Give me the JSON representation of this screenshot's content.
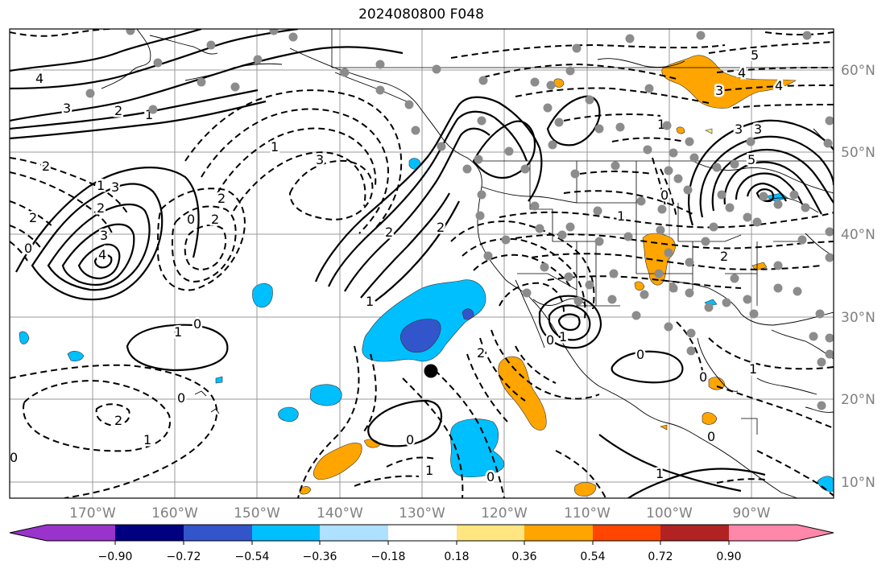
{
  "title": "2024080800 F048",
  "map": {
    "projection": "lat-lon",
    "lon_range": [
      -180,
      -80
    ],
    "lat_range": [
      7,
      64
    ],
    "lon_ticks": [
      "170°W",
      "160°W",
      "150°W",
      "140°W",
      "130°W",
      "120°W",
      "110°W",
      "100°W",
      "90°W"
    ],
    "lat_ticks": [
      "10°N",
      "20°N",
      "30°N",
      "40°N",
      "50°N",
      "60°N"
    ],
    "contour_labels": [
      "4",
      "3",
      "2",
      "1",
      "2",
      "3",
      "4",
      "3",
      "2",
      "1",
      "0",
      "1",
      "2",
      "3",
      "2",
      "2",
      "0",
      "1",
      "1",
      "0",
      "2",
      "2",
      "0",
      "1",
      "0",
      "2",
      "3",
      "4",
      "5",
      "5",
      "4",
      "3",
      "3",
      "1",
      "0",
      "1",
      "2",
      "1",
      "0",
      "1",
      "0",
      "0",
      "1",
      "0",
      "2",
      "1",
      "0",
      "0"
    ],
    "marker": {
      "type": "station-dot",
      "lon": -128.5,
      "lat": 23.3
    },
    "observation_dots": "scattered grey station markers over land"
  },
  "colors": {
    "purple": "#9933cc",
    "navy": "#000080",
    "royal_blue": "#3355cc",
    "deep_sky": "#00bfff",
    "light_blue": "#aee0ff",
    "white": "#ffffff",
    "light_yellow": "#ffe680",
    "orange": "#ffa500",
    "red_orange": "#ff4500",
    "firebrick": "#b22222",
    "pink": "#ff88aa"
  },
  "colorbar": {
    "ticks": [
      "−0.90",
      "−0.72",
      "−0.54",
      "−0.36",
      "−0.18",
      "0.18",
      "0.36",
      "0.54",
      "0.72",
      "0.90"
    ],
    "colors": [
      "#9933cc",
      "#000080",
      "#3355cc",
      "#00bfff",
      "#aee0ff",
      "#ffffff",
      "#ffe680",
      "#ffa500",
      "#ff4500",
      "#b22222",
      "#ff88aa"
    ]
  }
}
